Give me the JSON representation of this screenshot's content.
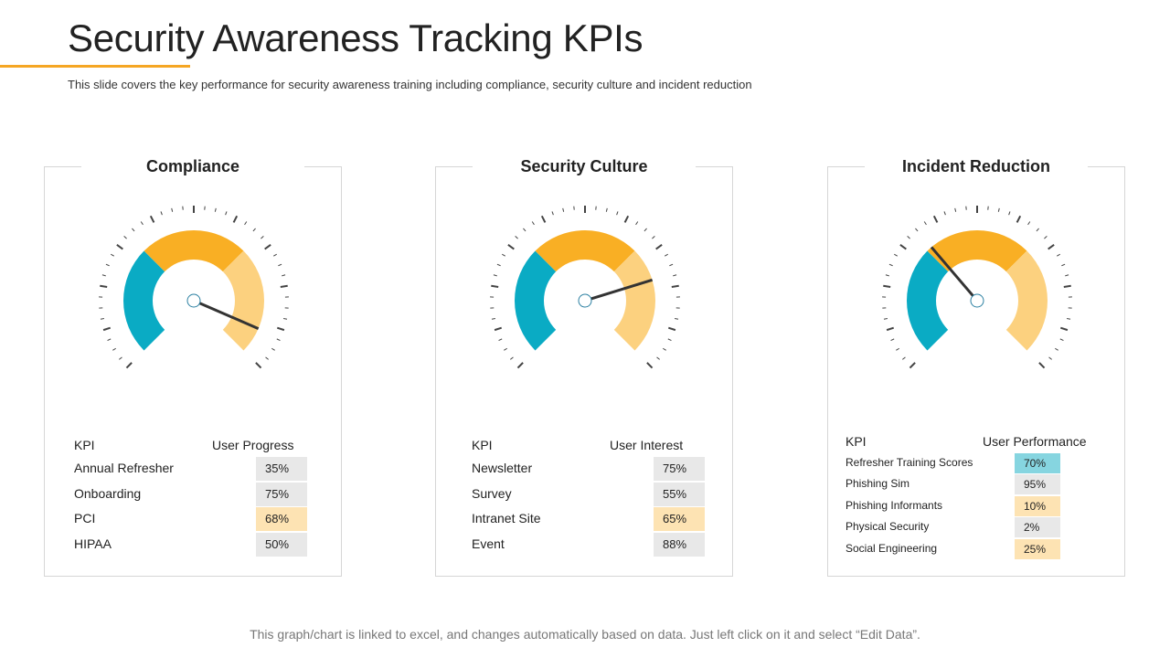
{
  "title": "Security Awareness Tracking KPIs",
  "subtitle": "This slide covers the key performance for security awareness training including compliance, security culture and incident reduction",
  "footer": "This graph/chart is linked to excel,  and changes automatically based on data. Just left click on it and select “Edit Data”.",
  "colors": {
    "accent": "#f5a623",
    "teal": "#0aabc4",
    "orange": "#f9af24",
    "light_orange": "#fcd17f",
    "needle": "#333333",
    "cell_grey": "#e8e8e8",
    "cell_highlight": "#fde3b3",
    "cell_teal": "#86d5e0"
  },
  "chart_data": [
    {
      "type": "gauge",
      "title": "Compliance",
      "segments": [
        "teal",
        "orange",
        "light_orange"
      ],
      "needle_value": 0.92,
      "table": {
        "header_kpi": "KPI",
        "header_value": "User Progress",
        "rows": [
          {
            "label": "Annual Refresher",
            "value": "35%",
            "style": "grey"
          },
          {
            "label": "Onboarding",
            "value": "75%",
            "style": "grey"
          },
          {
            "label": "PCI",
            "value": "68%",
            "style": "highlight"
          },
          {
            "label": "HIPAA",
            "value": "50%",
            "style": "grey"
          }
        ]
      }
    },
    {
      "type": "gauge",
      "title": "Security Culture",
      "segments": [
        "teal",
        "orange",
        "light_orange"
      ],
      "needle_value": 0.77,
      "table": {
        "header_kpi": "KPI",
        "header_value": "User Interest",
        "rows": [
          {
            "label": "Newsletter",
            "value": "75%",
            "style": "grey"
          },
          {
            "label": "Survey",
            "value": "55%",
            "style": "grey"
          },
          {
            "label": "Intranet Site",
            "value": "65%",
            "style": "highlight"
          },
          {
            "label": "Event",
            "value": "88%",
            "style": "grey"
          }
        ]
      }
    },
    {
      "type": "gauge",
      "title": "Incident Reduction",
      "segments": [
        "teal",
        "orange",
        "light_orange"
      ],
      "needle_value": 0.35,
      "table": {
        "header_kpi": "KPI",
        "header_value": "User Performance",
        "rows": [
          {
            "label": "Refresher Training Scores",
            "value": "70%",
            "style": "teal"
          },
          {
            "label": "Phishing Sim",
            "value": "95%",
            "style": "grey"
          },
          {
            "label": "Phishing Informants",
            "value": "10%",
            "style": "highlight"
          },
          {
            "label": "Physical Security",
            "value": "2%",
            "style": "grey"
          },
          {
            "label": "Social Engineering",
            "value": "25%",
            "style": "highlight"
          }
        ]
      }
    }
  ]
}
